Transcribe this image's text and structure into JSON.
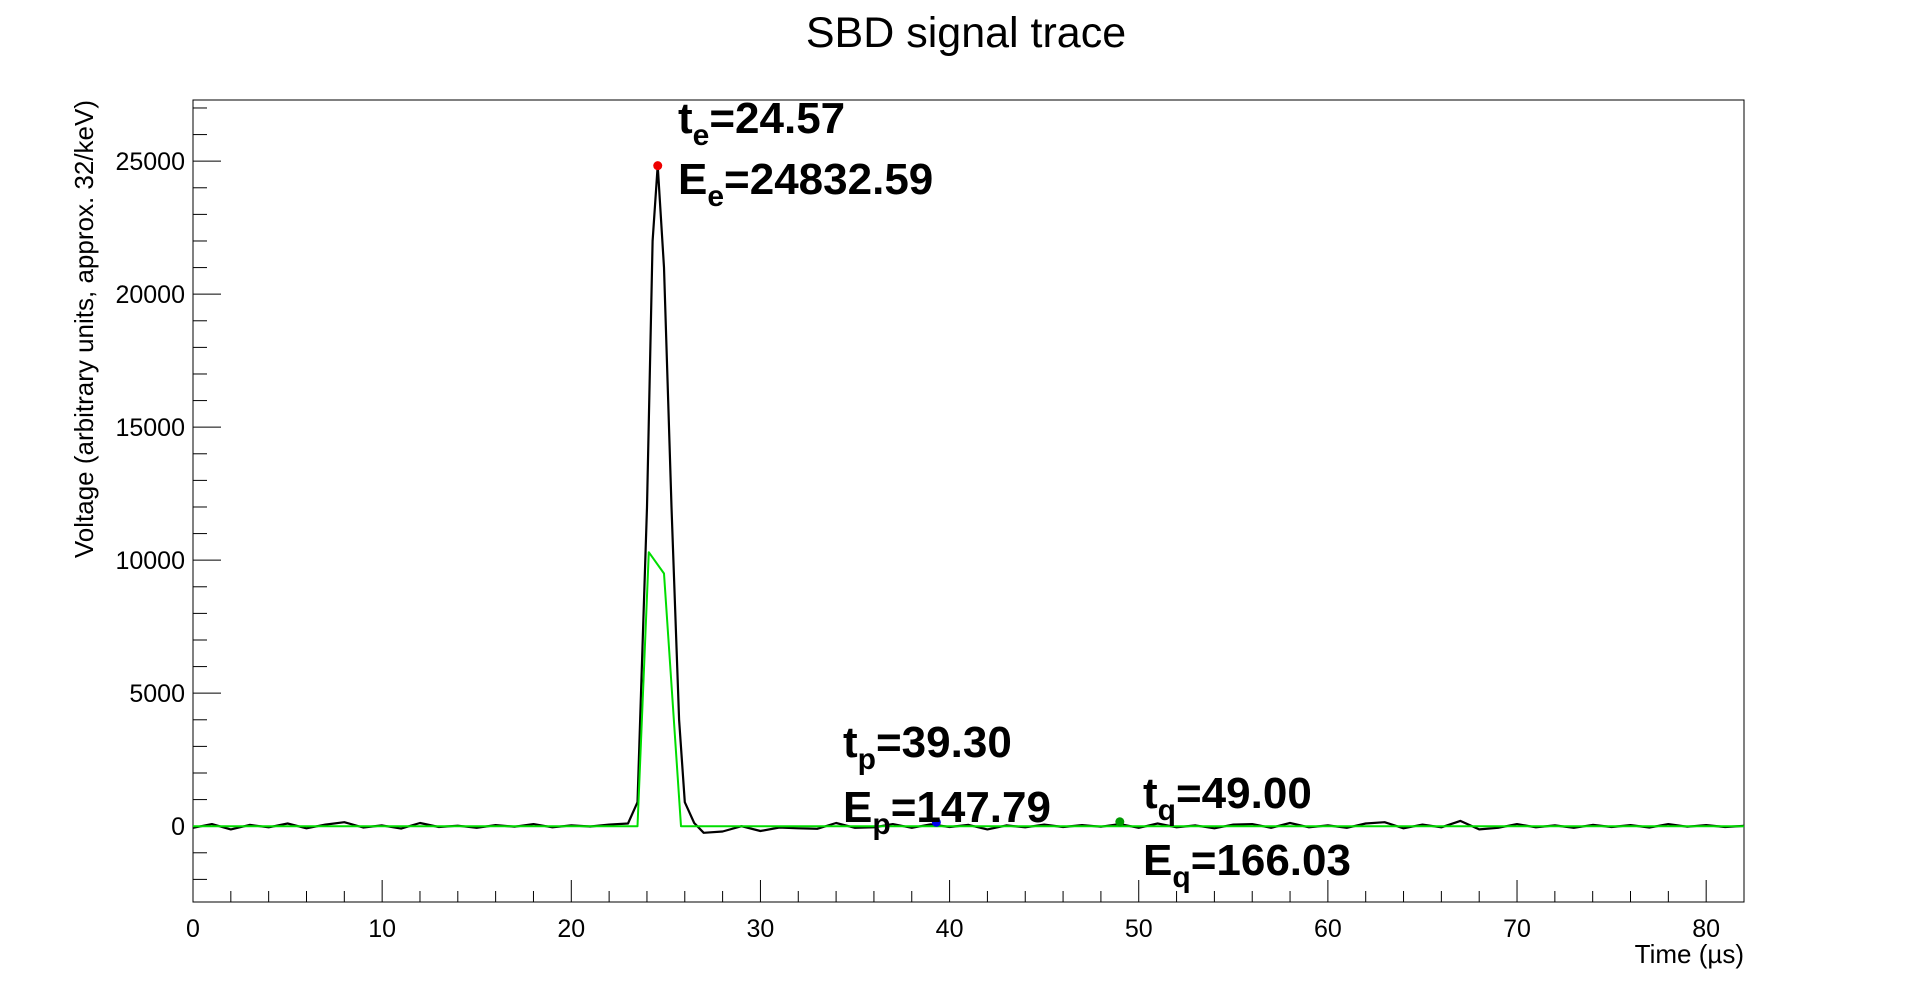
{
  "chart_data": {
    "type": "line",
    "title": "SBD signal trace",
    "xlabel": "Time (µs)",
    "ylabel": "Voltage (arbitrary units, approx. 32/keV)",
    "xlim": [
      0,
      82
    ],
    "ylim": [
      -2850,
      27300
    ],
    "xticks": [
      0,
      10,
      20,
      30,
      40,
      50,
      60,
      70,
      80
    ],
    "yticks": [
      0,
      5000,
      10000,
      15000,
      20000,
      25000
    ],
    "grid": false,
    "legend": "none",
    "series": [
      {
        "color": "#000000",
        "x": [
          0,
          1,
          2,
          3,
          4,
          5,
          6,
          7,
          8,
          9,
          10,
          11,
          12,
          13,
          14,
          15,
          16,
          17,
          18,
          19,
          20,
          21,
          22,
          23,
          23.5,
          24,
          24.3,
          24.57,
          24.9,
          25.3,
          25.7,
          26,
          26.5,
          27,
          28,
          29,
          30,
          31,
          32,
          33,
          34,
          35,
          36,
          37,
          38,
          39,
          40,
          41,
          42,
          43,
          44,
          45,
          46,
          47,
          48,
          49,
          50,
          51,
          52,
          53,
          54,
          55,
          56,
          57,
          58,
          59,
          60,
          61,
          62,
          63,
          64,
          65,
          66,
          67,
          68,
          69,
          70,
          71,
          72,
          73,
          74,
          75,
          76,
          77,
          78,
          79,
          80,
          81,
          82
        ],
        "y": [
          -60,
          80,
          -120,
          50,
          -40,
          100,
          -80,
          60,
          150,
          -50,
          30,
          -90,
          120,
          -30,
          20,
          -60,
          40,
          -20,
          80,
          -40,
          30,
          -10,
          60,
          100,
          900,
          12000,
          22000,
          24832.59,
          21000,
          12000,
          4000,
          900,
          120,
          -250,
          -200,
          0,
          -180,
          -50,
          -80,
          -100,
          120,
          -60,
          -40,
          80,
          -60,
          70,
          -30,
          50,
          -120,
          30,
          -40,
          60,
          -30,
          40,
          -20,
          80,
          -60,
          100,
          -40,
          30,
          -80,
          60,
          80,
          -60,
          120,
          -40,
          30,
          -60,
          100,
          150,
          -80,
          60,
          -40,
          200,
          -120,
          -60,
          80,
          -40,
          30,
          -60,
          50,
          -30,
          40,
          -50,
          80,
          -20,
          40,
          -30,
          10
        ]
      },
      {
        "color": "#00dd00",
        "x": [
          0,
          23.5,
          24.1,
          24.9,
          25.8,
          82
        ],
        "y": [
          0,
          0,
          10300,
          9500,
          0,
          0
        ]
      }
    ],
    "markers": [
      {
        "x": 24.57,
        "y": 24832.59,
        "color": "#ee0000"
      },
      {
        "x": 39.3,
        "y": 147.79,
        "color": "#0000ee"
      },
      {
        "x": 49.0,
        "y": 166.03,
        "color": "#009900"
      }
    ],
    "annotations": [
      {
        "t_prefix": "t",
        "t_sub": "e",
        "t_value": "=24.57",
        "e_prefix": "E",
        "e_sub": "e",
        "e_value": "=24832.59"
      },
      {
        "t_prefix": "t",
        "t_sub": "p",
        "t_value": "=39.30",
        "e_prefix": "E",
        "e_sub": "p",
        "e_value": "=147.79"
      },
      {
        "t_prefix": "t",
        "t_sub": "q",
        "t_value": "=49.00",
        "e_prefix": "E",
        "e_sub": "q",
        "e_value": "=166.03"
      }
    ]
  }
}
